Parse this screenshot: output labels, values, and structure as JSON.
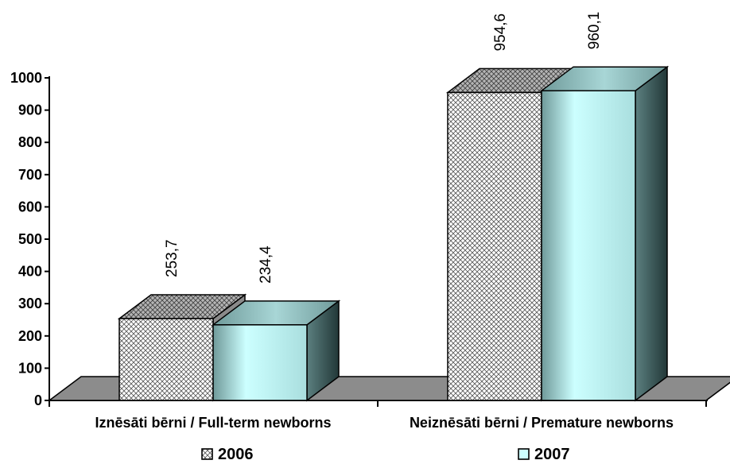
{
  "chart_data": {
    "type": "bar",
    "categories": [
      "Iznēsāti bērni / Full-term newborns",
      "Neiznēsāti bērni / Premature newborns"
    ],
    "series": [
      {
        "name": "2006",
        "values": [
          253.7,
          954.6
        ],
        "labels": [
          "253,7",
          "954,6"
        ]
      },
      {
        "name": "2007",
        "values": [
          234.4,
          960.1
        ],
        "labels": [
          "234,4",
          "960,1"
        ]
      }
    ],
    "ylim": [
      0,
      1000
    ],
    "yticks": [
      0,
      100,
      200,
      300,
      400,
      500,
      600,
      700,
      800,
      900,
      1000
    ],
    "legend_position": "bottom",
    "grid": false,
    "colors": {
      "series_2006_front": "#ffffff",
      "series_2006_top": "#a8a8a8",
      "series_2006_side": "#8a8a8a",
      "series_2007_front": "#ccffff",
      "series_2007_top": "#88b8b8",
      "series_2007_side": "#3a5a5a",
      "floor": "#8c8c8c"
    }
  }
}
